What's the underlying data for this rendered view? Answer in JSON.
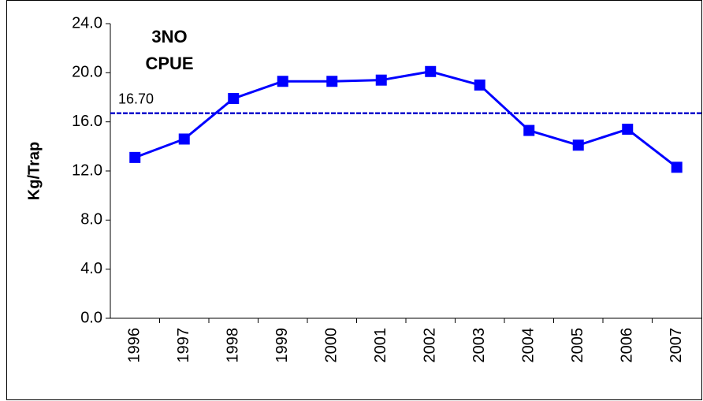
{
  "chart_data": {
    "type": "line",
    "title": [
      "3NO",
      "CPUE"
    ],
    "y_label": "Kg/Trap",
    "categories": [
      "1996",
      "1997",
      "1998",
      "1999",
      "2000",
      "2001",
      "2002",
      "2003",
      "2004",
      "2005",
      "2006",
      "2007"
    ],
    "series": [
      {
        "name": "CPUE",
        "color": "#0000ff",
        "values": [
          13.1,
          14.6,
          17.9,
          19.3,
          19.3,
          19.4,
          20.1,
          19.0,
          15.3,
          14.1,
          15.4,
          12.3
        ]
      }
    ],
    "reference_line": {
      "value": 16.7,
      "label": "16.70",
      "color": "#0000cc"
    },
    "ylim": [
      0,
      24
    ],
    "yticks": [
      {
        "value": 0,
        "label": "0.0"
      },
      {
        "value": 4,
        "label": "4.0"
      },
      {
        "value": 8,
        "label": "8.0"
      },
      {
        "value": 12,
        "label": "12.0"
      },
      {
        "value": 16,
        "label": "16.0"
      },
      {
        "value": 20,
        "label": "20.0"
      },
      {
        "value": 24,
        "label": "24.0"
      }
    ],
    "grid": false
  }
}
